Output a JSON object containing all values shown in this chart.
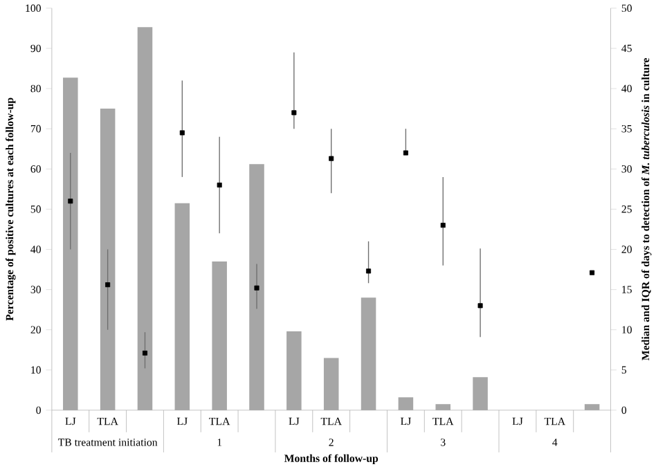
{
  "chart_data": {
    "type": "bar",
    "categories": [
      "LJ",
      "TLA",
      null,
      "LJ",
      "TLA",
      null,
      "LJ",
      "TLA",
      null,
      "LJ",
      "TLA",
      null,
      "LJ",
      "TLA",
      null
    ],
    "series": [
      {
        "color": "#a6a6a6",
        "values": [
          82.7,
          75,
          95.3,
          51.5,
          37,
          61.2,
          19.6,
          13,
          28,
          3.2,
          1.5,
          8.2,
          0,
          0,
          1.5
        ]
      },
      {
        "type": "scatter",
        "axis": "y2",
        "color": "#000000",
        "marker": "square",
        "values": [
          26,
          15.6,
          7.1,
          34.5,
          28,
          15.2,
          37,
          31.3,
          17.3,
          32,
          23,
          13,
          null,
          null,
          17.1
        ],
        "errors": [
          [
            20,
            32
          ],
          [
            10,
            20
          ],
          [
            5.2,
            9.7
          ],
          [
            29,
            41
          ],
          [
            22,
            34
          ],
          [
            12.6,
            18.2
          ],
          [
            35,
            44.5
          ],
          [
            27,
            35
          ],
          [
            15.8,
            21
          ],
          [
            32,
            35
          ],
          [
            18,
            29
          ],
          [
            9.1,
            20.1
          ],
          null,
          null,
          null
        ]
      }
    ],
    "annotations": [
      "TB treatment initiation",
      "1",
      "2",
      "3",
      "4"
    ],
    "xlabel": "Months of follow-up",
    "ylabel": "Percentage of positive cultures at each follow-up",
    "y2label": "Median and IQR of days to detection of *M. tuberculosis* in culture",
    "ylim": [
      0,
      100
    ],
    "yticks": [
      0,
      10,
      20,
      30,
      40,
      50,
      60,
      70,
      80,
      90,
      100
    ],
    "y2lim": [
      0,
      50
    ],
    "y2ticks": [
      0,
      5,
      10,
      15,
      20,
      25,
      30,
      35,
      40,
      45,
      50
    ]
  }
}
